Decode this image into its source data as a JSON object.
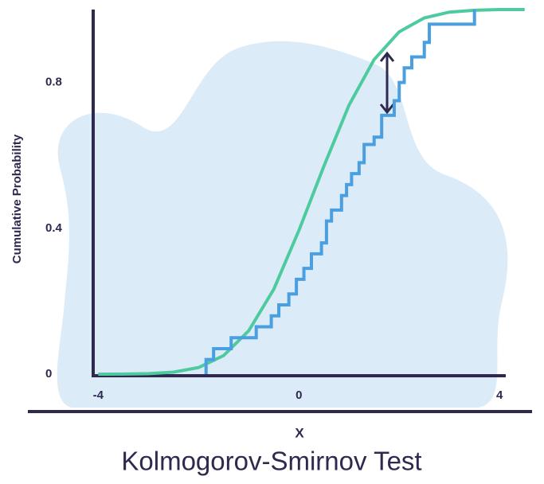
{
  "chart_data": {
    "type": "line",
    "title": "Kolmogorov-Smirnov Test",
    "xlabel": "X",
    "ylabel": "Cumulative Probability",
    "xlim": [
      -4.1,
      4.6
    ],
    "ylim": [
      0,
      1
    ],
    "xticks": [
      -4,
      0,
      4
    ],
    "yticks": [
      0,
      0.4,
      0.8
    ],
    "series": [
      {
        "color": "#4ecb9e",
        "step": false,
        "x": [
          -4,
          -3.5,
          -3,
          -2.5,
          -2,
          -1.5,
          -1,
          -0.5,
          0,
          0.5,
          1,
          1.5,
          2,
          2.5,
          3,
          3.5,
          4,
          4.5
        ],
        "values": [
          0,
          0.0003,
          0.0013,
          0.0054,
          0.018,
          0.051,
          0.119,
          0.233,
          0.394,
          0.571,
          0.738,
          0.863,
          0.939,
          0.977,
          0.993,
          0.998,
          1,
          1
        ]
      },
      {
        "color": "#4a9fe0",
        "step": true,
        "x": [
          -1.85,
          -1.7,
          -1.35,
          -0.85,
          -0.55,
          -0.4,
          -0.2,
          -0.05,
          0.1,
          0.25,
          0.45,
          0.55,
          0.65,
          0.85,
          0.95,
          1.05,
          1.2,
          1.3,
          1.5,
          1.65,
          1.9,
          2.0,
          2.1,
          2.25,
          2.5,
          2.6,
          3.5
        ],
        "values": [
          0.04,
          0.07,
          0.1,
          0.13,
          0.16,
          0.19,
          0.22,
          0.26,
          0.29,
          0.33,
          0.36,
          0.42,
          0.45,
          0.49,
          0.52,
          0.55,
          0.58,
          0.63,
          0.65,
          0.71,
          0.75,
          0.8,
          0.84,
          0.87,
          0.91,
          0.96,
          1
        ]
      }
    ]
  }
}
